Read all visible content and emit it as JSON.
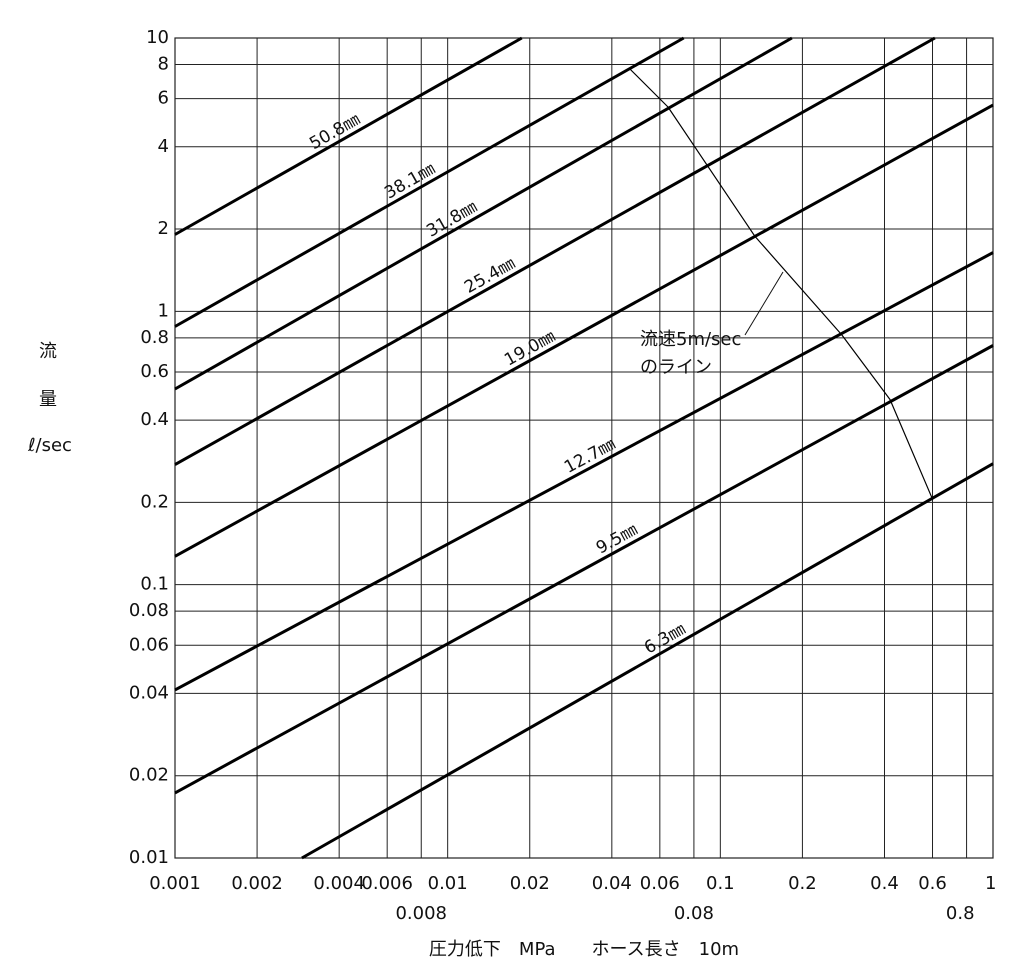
{
  "chart_data": {
    "type": "line",
    "x_label": "圧力低下　MPa　　ホース長さ　10m",
    "y_label_lines": [
      "流",
      "量",
      "ℓ/sec"
    ],
    "xscale": "log",
    "yscale": "log",
    "grid": true,
    "xlim": [
      0.001,
      1
    ],
    "ylim": [
      0.01,
      10
    ],
    "xticks": [
      0.001,
      0.002,
      0.004,
      0.006,
      0.008,
      0.01,
      0.02,
      0.04,
      0.06,
      0.08,
      0.1,
      0.2,
      0.4,
      0.6,
      0.8,
      1
    ],
    "yticks": [
      0.01,
      0.02,
      0.04,
      0.06,
      0.08,
      0.1,
      0.2,
      0.4,
      0.6,
      0.8,
      1,
      2,
      4,
      6,
      8,
      10
    ],
    "series": [
      {
        "name": "50.8㎜",
        "color": "#000000",
        "width": 3,
        "x": [
          0.001,
          0.0187
        ],
        "values": [
          1.91,
          10
        ]
      },
      {
        "name": "38.1㎜",
        "color": "#000000",
        "width": 3,
        "x": [
          0.001,
          0.0734
        ],
        "values": [
          0.88,
          10
        ]
      },
      {
        "name": "31.8㎜",
        "color": "#000000",
        "width": 3,
        "x": [
          0.001,
          0.183
        ],
        "values": [
          0.52,
          10
        ]
      },
      {
        "name": "25.4㎜",
        "color": "#000000",
        "width": 3,
        "x": [
          0.001,
          0.612
        ],
        "values": [
          0.275,
          10
        ]
      },
      {
        "name": "19.0㎜",
        "color": "#000000",
        "width": 3,
        "x": [
          0.001,
          1
        ],
        "values": [
          0.127,
          5.68
        ]
      },
      {
        "name": "12.7㎜",
        "color": "#000000",
        "width": 3,
        "x": [
          0.001,
          1
        ],
        "values": [
          0.0412,
          1.64
        ]
      },
      {
        "name": "9.5㎜",
        "color": "#000000",
        "width": 3,
        "x": [
          0.001,
          1
        ],
        "values": [
          0.0173,
          0.75
        ]
      },
      {
        "name": "6.3㎜",
        "color": "#000000",
        "width": 3,
        "x": [
          0.00292,
          1
        ],
        "values": [
          0.01,
          0.277
        ]
      },
      {
        "color": "#000000",
        "width": 1.2,
        "x": [
          0.0466,
          0.0643,
          0.134,
          0.279,
          0.419,
          0.597
        ],
        "values": [
          7.7,
          5.59,
          1.88,
          0.82,
          0.476,
          0.208
        ]
      }
    ],
    "annotation_lines": [
      "流速5m/sec",
      "のライン"
    ]
  }
}
